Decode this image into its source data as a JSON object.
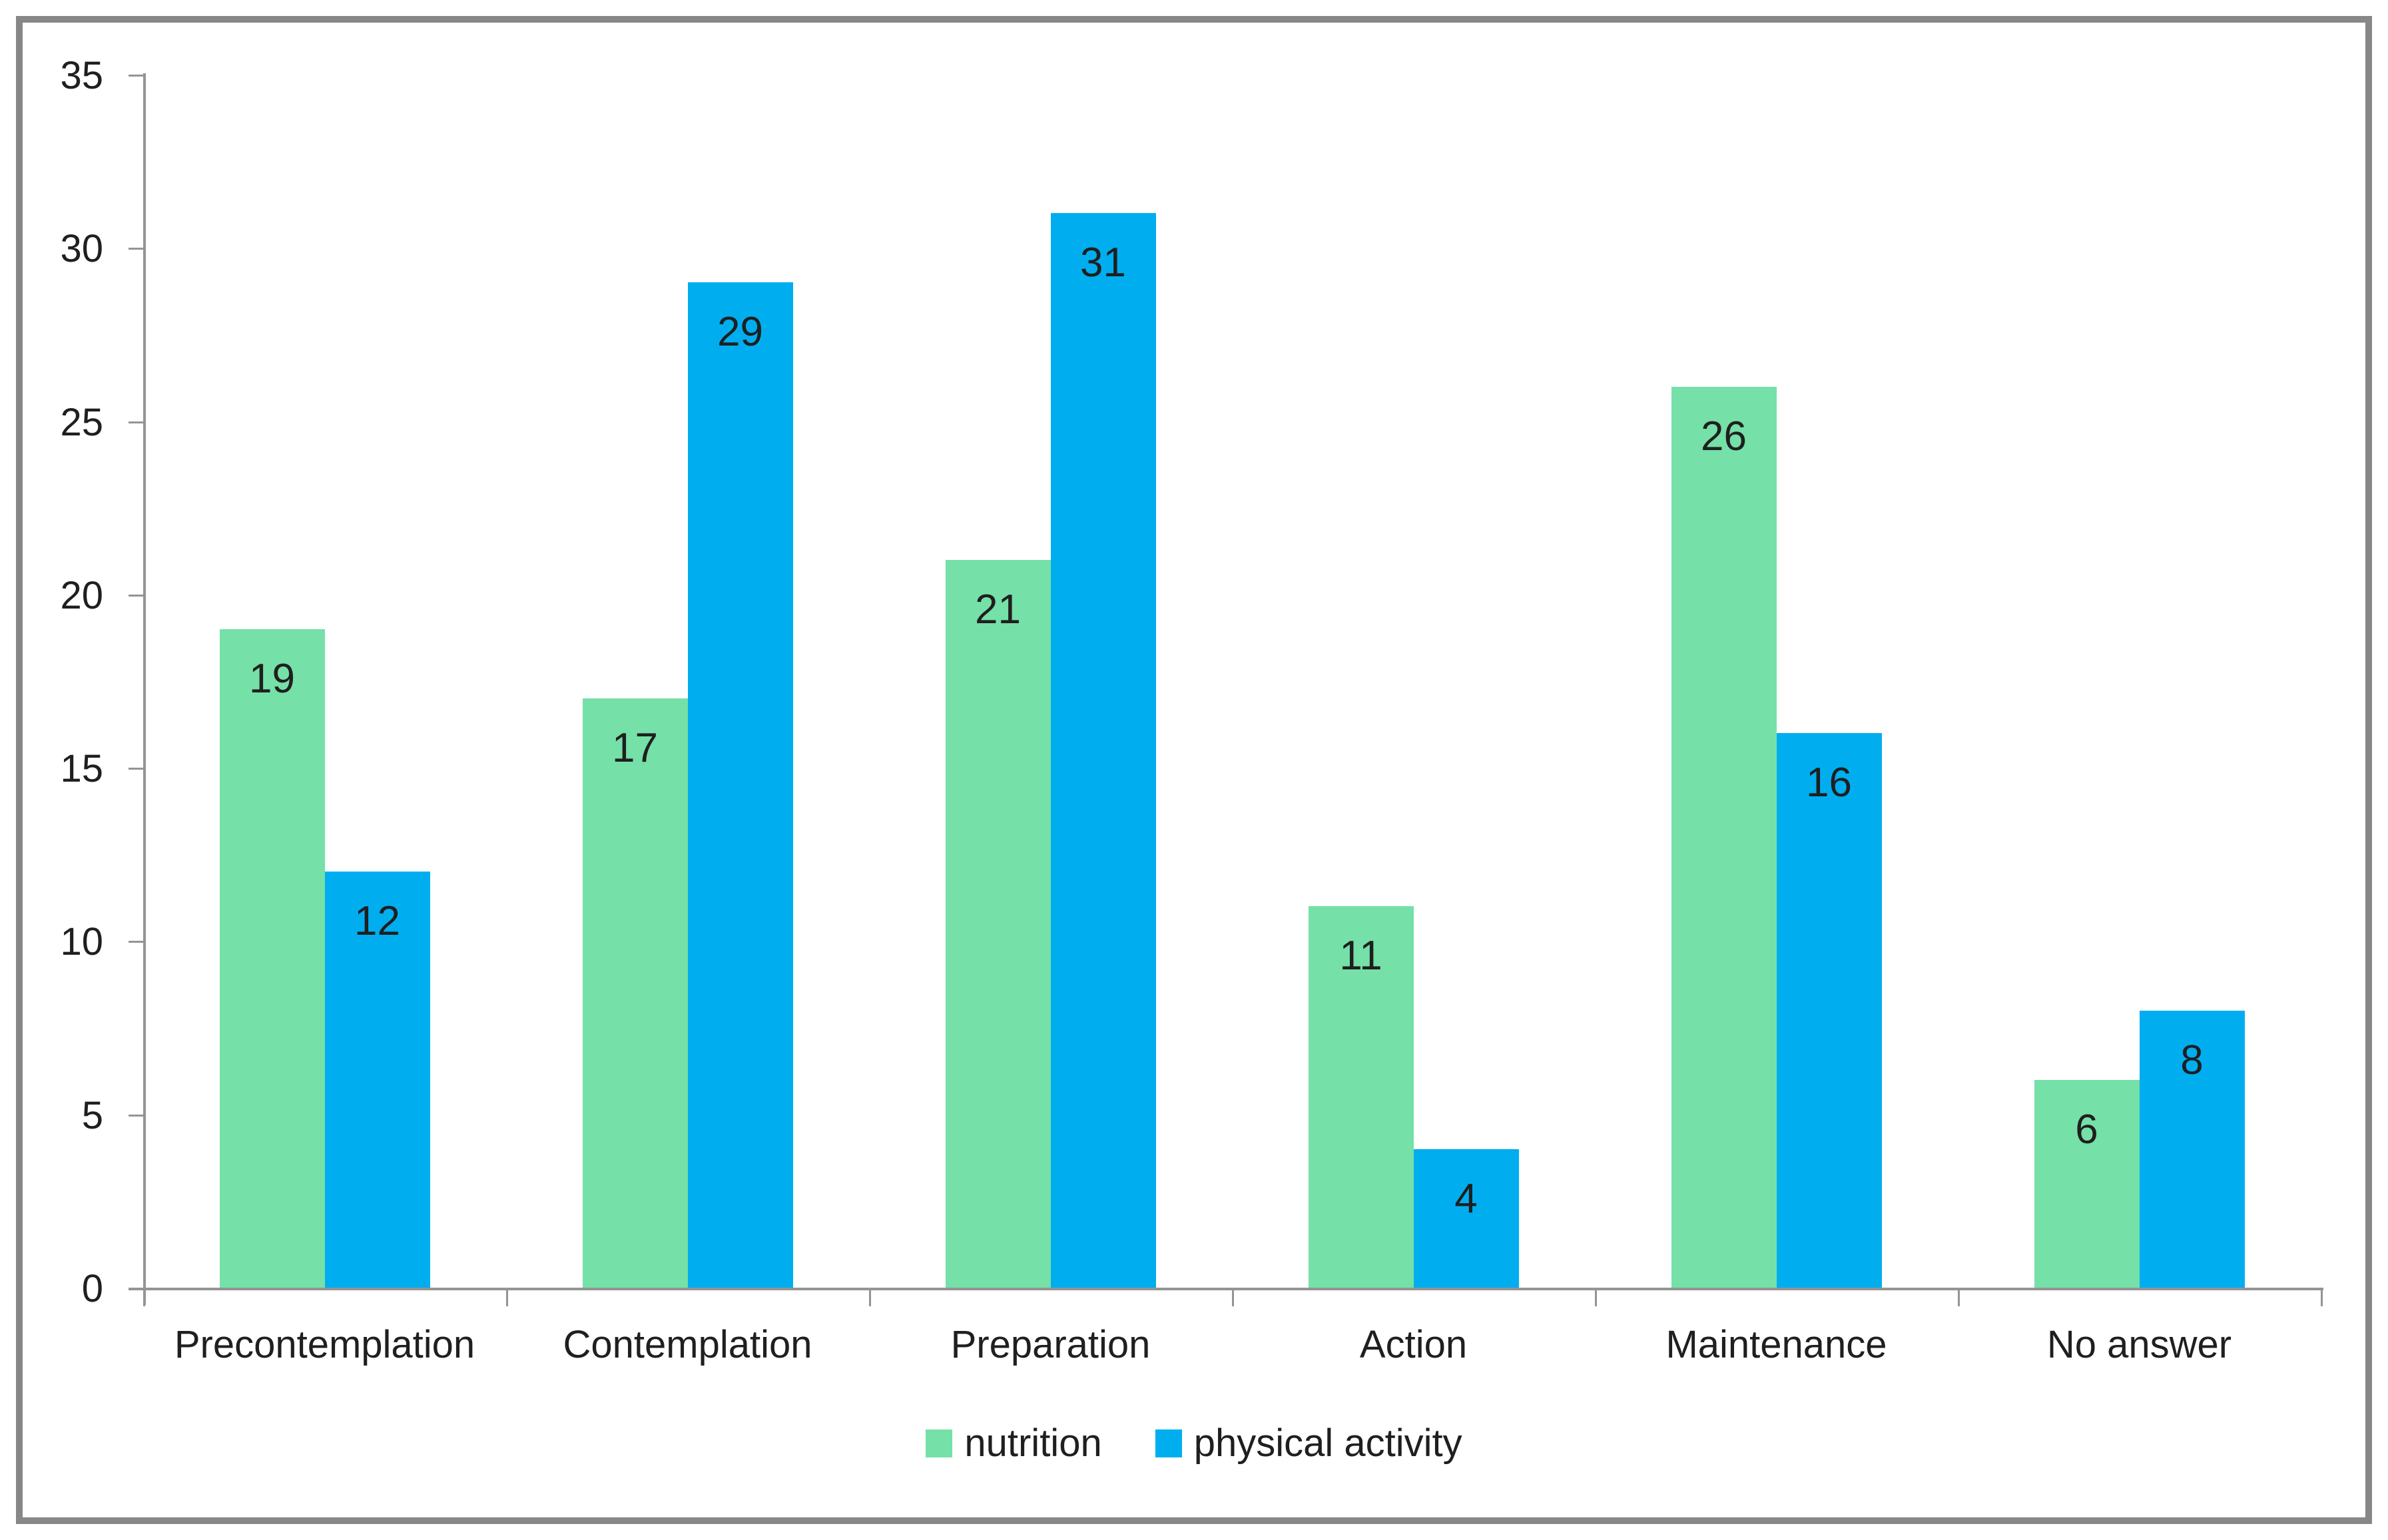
{
  "chart_data": {
    "type": "bar",
    "title": "",
    "xlabel": "",
    "ylabel": "",
    "categories": [
      "Precontemplation",
      "Contemplation",
      "Preparation",
      "Action",
      "Maintenance",
      "No answer"
    ],
    "series": [
      {
        "name": "nutrition",
        "color": "#75E0A7",
        "values": [
          19,
          17,
          21,
          11,
          26,
          6
        ]
      },
      {
        "name": "physical activity",
        "color": "#00AEEF",
        "values": [
          12,
          29,
          31,
          4,
          16,
          8
        ]
      }
    ],
    "ylim": [
      0,
      35
    ],
    "yticks": [
      0,
      5,
      10,
      15,
      20,
      25,
      30,
      35
    ],
    "grid": "off",
    "gridlines": false,
    "legend_position": "bottom-center",
    "data_labels": "inside-end",
    "axis_color": "#949494",
    "frame_border_color": "#878787",
    "label_text_color": "#1f1f1f"
  }
}
